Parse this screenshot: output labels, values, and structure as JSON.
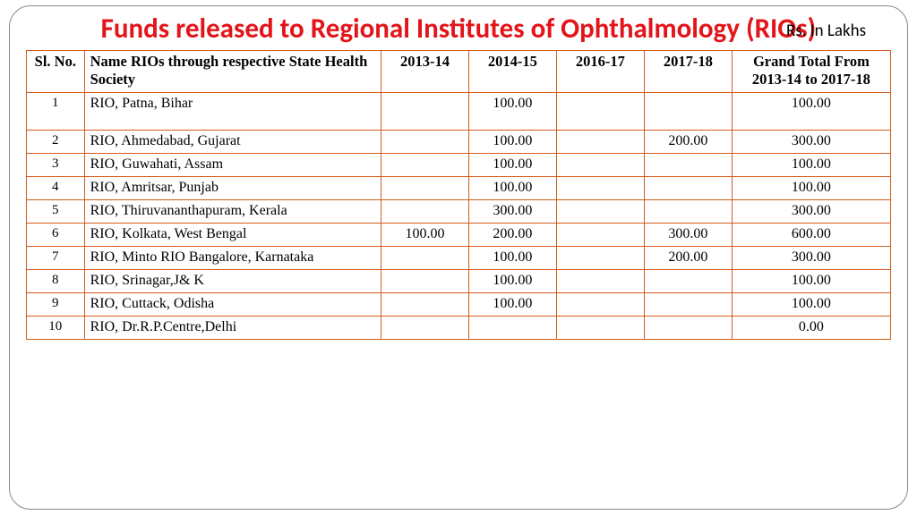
{
  "title": "Funds released to Regional Institutes of Ophthalmology (RIOs)",
  "unit_label": "Rs. In Lakhs",
  "colors": {
    "title": "#e3141a",
    "border": "#d45a1a",
    "frame": "#888888",
    "bg": "#ffffff",
    "text": "#000000"
  },
  "columns": {
    "slno": "Sl. No.",
    "name": "Name  RIOs through respective State Health Society",
    "y1": "2013-14",
    "y2": "2014-15",
    "y3": "2016-17",
    "y4": "2017-18",
    "total": "Grand Total From 2013-14 to 2017-18"
  },
  "rows": [
    {
      "slno": "1",
      "name": "RIO, Patna, Bihar",
      "y1": "",
      "y2": "100.00",
      "y3": "",
      "y4": "",
      "total": "100.00",
      "tall": true
    },
    {
      "slno": "2",
      "name": "RIO, Ahmedabad, Gujarat",
      "y1": "",
      "y2": "100.00",
      "y3": "",
      "y4": "200.00",
      "total": "300.00"
    },
    {
      "slno": "3",
      "name": "RIO, Guwahati, Assam",
      "y1": "",
      "y2": "100.00",
      "y3": "",
      "y4": "",
      "total": "100.00"
    },
    {
      "slno": "4",
      "name": "RIO, Amritsar, Punjab",
      "y1": "",
      "y2": "100.00",
      "y3": "",
      "y4": "",
      "total": "100.00"
    },
    {
      "slno": "5",
      "name": "RIO, Thiruvananthapuram, Kerala",
      "y1": "",
      "y2": "300.00",
      "y3": "",
      "y4": "",
      "total": "300.00"
    },
    {
      "slno": "6",
      "name": "RIO, Kolkata, West Bengal",
      "y1": "100.00",
      "y2": "200.00",
      "y3": "",
      "y4": "300.00",
      "total": "600.00"
    },
    {
      "slno": "7",
      "name": "RIO, Minto RIO Bangalore, Karnataka",
      "y1": "",
      "y2": "100.00",
      "y3": "",
      "y4": "200.00",
      "total": "300.00"
    },
    {
      "slno": "8",
      "name": "RIO, Srinagar,J& K",
      "y1": "",
      "y2": "100.00",
      "y3": "",
      "y4": "",
      "total": "100.00"
    },
    {
      "slno": "9",
      "name": "RIO, Cuttack, Odisha",
      "y1": "",
      "y2": "100.00",
      "y3": "",
      "y4": "",
      "total": "100.00"
    },
    {
      "slno": "10",
      "name": "RIO, Dr.R.P.Centre,Delhi",
      "y1": "",
      "y2": "",
      "y3": "",
      "y4": "",
      "total": "0.00"
    }
  ]
}
